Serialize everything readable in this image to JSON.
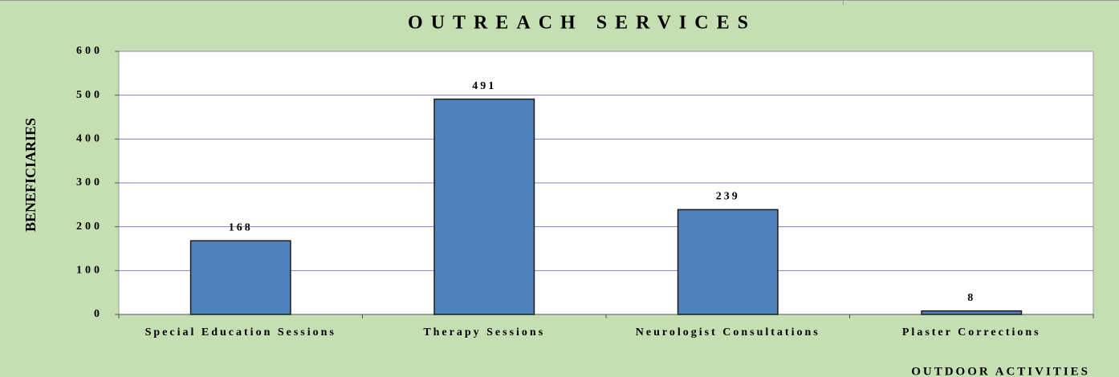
{
  "chart_data": {
    "type": "bar",
    "title": "OUTREACH SERVICES",
    "x_label": "OUTDOOR ACTIVITIES",
    "y_label": "BENEFICIARIES",
    "categories": [
      "Special Education Sessions",
      "Therapy Sessions",
      "Neurologist Consultations",
      "Plaster Corrections"
    ],
    "values": [
      168,
      491,
      239,
      8
    ],
    "color": "#4f81bd",
    "ylim": [
      0,
      600
    ],
    "yticks": [
      0,
      100,
      200,
      300,
      400,
      500,
      600
    ],
    "grid": true
  }
}
